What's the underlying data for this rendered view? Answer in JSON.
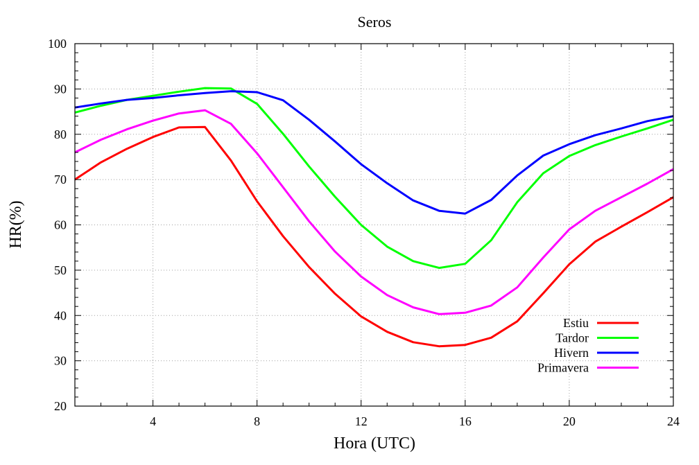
{
  "chart_data": {
    "type": "line",
    "title": "Seros",
    "xlabel": "Hora (UTC)",
    "ylabel": "HR(%)",
    "xlim": [
      1,
      24
    ],
    "ylim": [
      20,
      100
    ],
    "x_ticks": [
      4,
      8,
      12,
      16,
      20,
      24
    ],
    "y_ticks": [
      20,
      30,
      40,
      50,
      60,
      70,
      80,
      90,
      100
    ],
    "grid": true,
    "legend_position": "bottom-right",
    "x": [
      1,
      2,
      3,
      4,
      5,
      6,
      7,
      8,
      9,
      10,
      11,
      12,
      13,
      14,
      15,
      16,
      17,
      18,
      19,
      20,
      21,
      22,
      23,
      24
    ],
    "series": [
      {
        "name": "Estiu",
        "color": "#ff0000",
        "values": [
          70,
          73.8,
          76.8,
          79.4,
          81.5,
          81.6,
          74.2,
          65.2,
          57.5,
          50.7,
          44.8,
          39.8,
          36.4,
          34.1,
          33.2,
          33.5,
          35.1,
          38.7,
          44.9,
          51.3,
          56.3,
          59.6,
          62.8,
          66.1
        ]
      },
      {
        "name": "Tardor",
        "color": "#00ff00",
        "values": [
          84.8,
          86.3,
          87.6,
          88.5,
          89.4,
          90.2,
          90.1,
          86.7,
          80.1,
          72.9,
          66.2,
          60.0,
          55.2,
          52.0,
          50.5,
          51.4,
          56.6,
          65.0,
          71.4,
          75.2,
          77.6,
          79.5,
          81.3,
          83.2
        ]
      },
      {
        "name": "Hivern",
        "color": "#0000ff",
        "values": [
          85.9,
          86.8,
          87.6,
          88.0,
          88.6,
          89.1,
          89.5,
          89.3,
          87.5,
          83.2,
          78.4,
          73.4,
          69.2,
          65.4,
          63.1,
          62.5,
          65.5,
          70.9,
          75.3,
          77.8,
          79.8,
          81.3,
          82.9,
          84.0
        ]
      },
      {
        "name": "Primavera",
        "color": "#ff00ff",
        "values": [
          76,
          78.8,
          81.1,
          83.0,
          84.6,
          85.3,
          82.3,
          75.8,
          68.3,
          60.8,
          54.1,
          48.6,
          44.5,
          41.8,
          40.3,
          40.6,
          42.2,
          46.2,
          52.8,
          59.0,
          63.1,
          66.1,
          69.1,
          72.3
        ]
      }
    ]
  }
}
